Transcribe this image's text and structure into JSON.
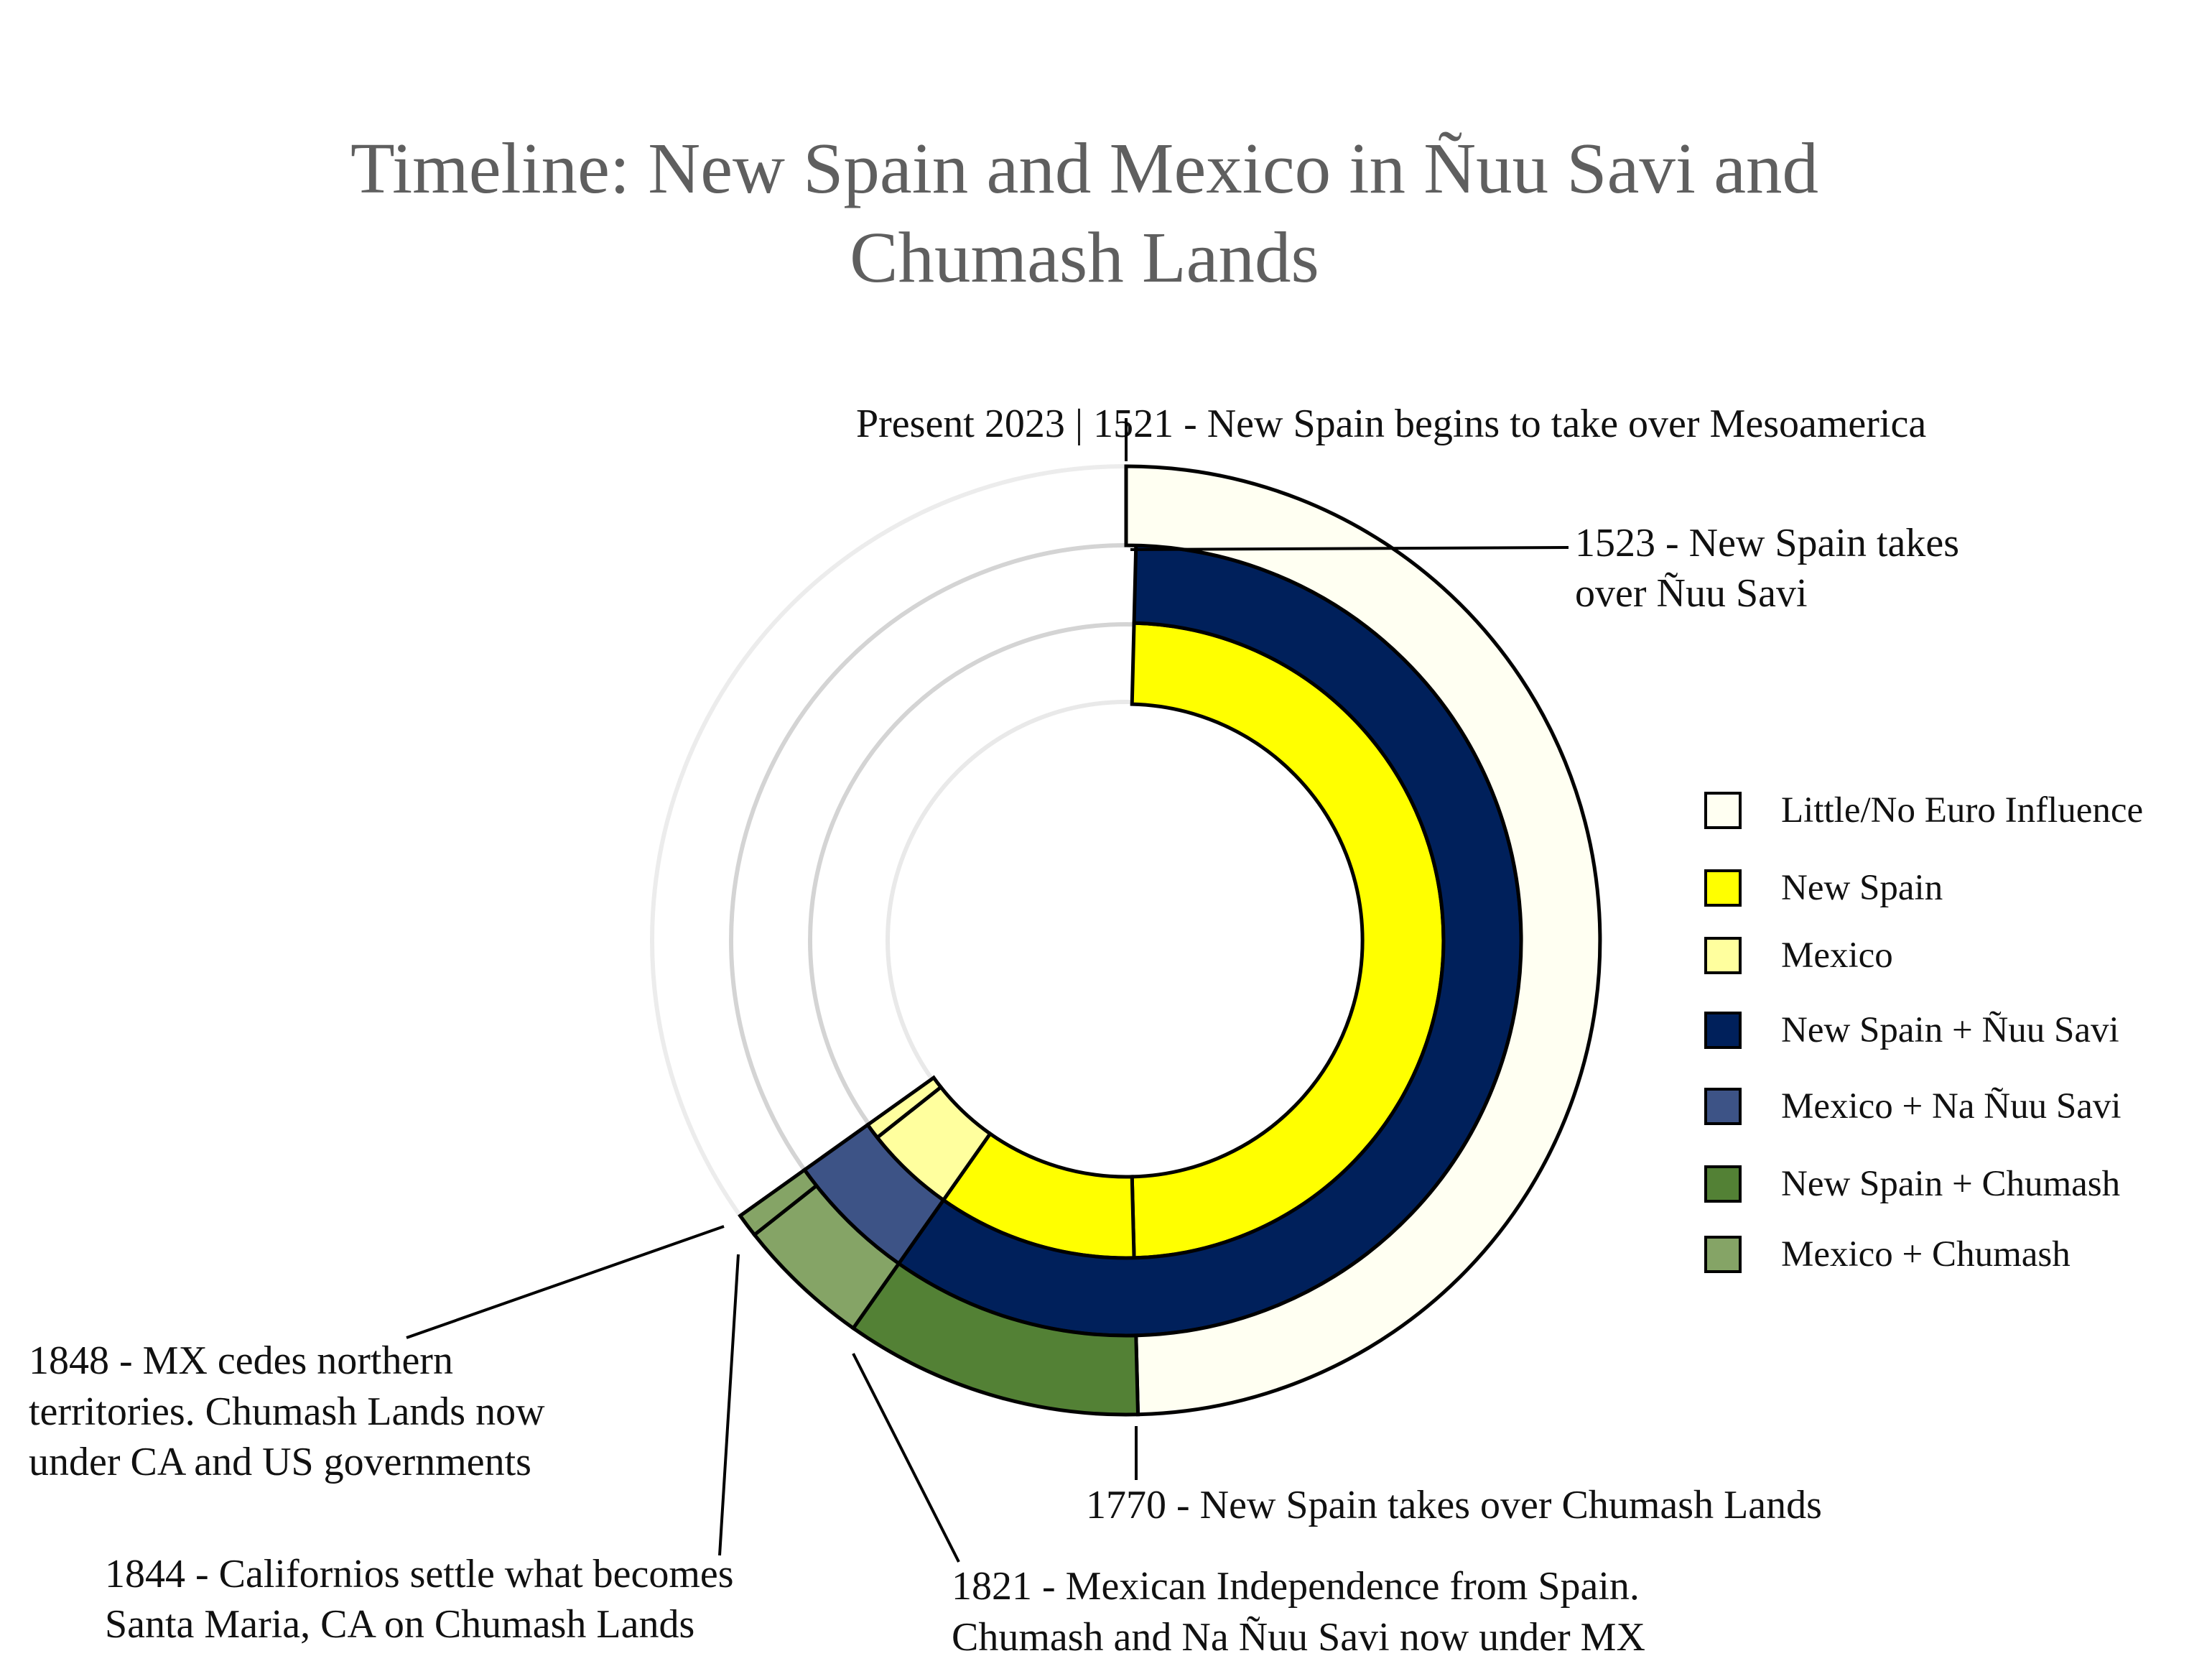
{
  "chart_data": {
    "type": "radial-timeline",
    "title_lines": [
      "Timeline: New Spain and Mexico in Ñuu Savi and",
      "Chumash Lands"
    ],
    "time_range": [
      1521,
      2023
    ],
    "start_label": "Present 2023 | 1521 - New Spain begins to take over Mesoamerica",
    "rings": [
      {
        "name": "Inner",
        "segments": [
          {
            "category": "New Spain",
            "start": 1523,
            "end": 1770
          },
          {
            "category": "New Spain",
            "start": 1770,
            "end": 1821
          },
          {
            "category": "Mexico",
            "start": 1821,
            "end": 1844
          },
          {
            "category": "Mexico",
            "start": 1844,
            "end": 1848
          }
        ]
      },
      {
        "name": "Middle",
        "segments": [
          {
            "category": "New Spain + Ñuu Savi",
            "start": 1523,
            "end": 1821
          },
          {
            "category": "Mexico + Na Ñuu Savi",
            "start": 1821,
            "end": 1848
          }
        ]
      },
      {
        "name": "Outer",
        "segments": [
          {
            "category": "Little/No Euro Influence",
            "start": 1521,
            "end": 1770
          },
          {
            "category": "New Spain + Chumash",
            "start": 1770,
            "end": 1821
          },
          {
            "category": "Mexico + Chumash",
            "start": 1821,
            "end": 1844
          },
          {
            "category": "Mexico + Chumash",
            "start": 1844,
            "end": 1848
          }
        ]
      }
    ],
    "legend": [
      {
        "label": "Little/No Euro Influence",
        "color": "#fffff2"
      },
      {
        "label": "New Spain",
        "color": "#ffff00"
      },
      {
        "label": "Mexico",
        "color": "#ffff9e"
      },
      {
        "label": "New Spain + Ñuu Savi",
        "color": "#00205b"
      },
      {
        "label": "Mexico + Na Ñuu Savi",
        "color": "#3d5386"
      },
      {
        "label": "New Spain + Chumash",
        "color": "#538135"
      },
      {
        "label": "Mexico + Chumash",
        "color": "#85a466"
      }
    ],
    "annotations": [
      {
        "year": 1523,
        "lines": [
          "1523 - New Spain takes",
          "over Ñuu Savi"
        ]
      },
      {
        "year": 1770,
        "lines": [
          "1770 - New Spain takes over Chumash Lands"
        ]
      },
      {
        "year": 1821,
        "lines": [
          "1821 - Mexican Independence from Spain.",
          "Chumash and Na Ñuu Savi now under MX"
        ]
      },
      {
        "year": 1844,
        "lines": [
          "1844 - Californios settle what becomes",
          "Santa Maria, CA on Chumash Lands"
        ]
      },
      {
        "year": 1848,
        "lines": [
          "1848 - MX cedes northern",
          "territories. Chumash Lands now",
          "under CA and US governments"
        ]
      }
    ]
  }
}
